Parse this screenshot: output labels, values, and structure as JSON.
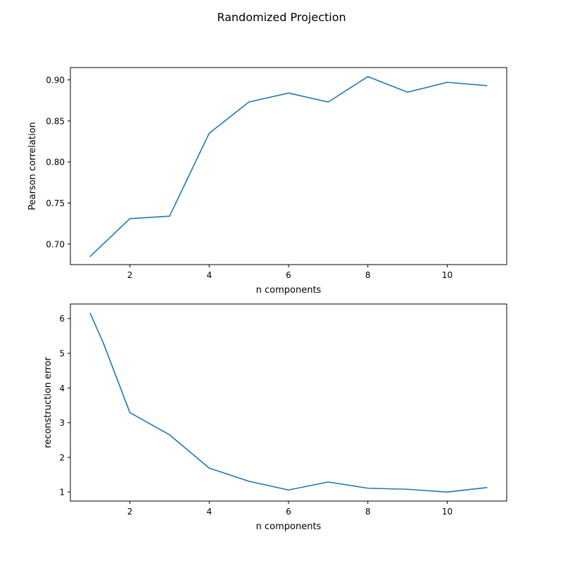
{
  "figure": {
    "suptitle": "Randomized Projection",
    "line_color": "#1f77b4"
  },
  "chart_data": [
    {
      "type": "line",
      "xlabel": "n components",
      "ylabel": "Pearson correlation",
      "x": [
        1,
        2,
        3,
        4,
        5,
        6,
        7,
        8,
        9,
        10,
        11
      ],
      "series": [
        {
          "values": [
            0.685,
            0.731,
            0.734,
            0.835,
            0.873,
            0.884,
            0.873,
            0.904,
            0.885,
            0.897,
            0.893
          ]
        }
      ],
      "xlim": [
        0.5,
        11.5
      ],
      "ylim": [
        0.675,
        0.915
      ],
      "xticks": [
        2,
        4,
        6,
        8,
        10
      ],
      "xtick_labels": [
        "2",
        "4",
        "6",
        "8",
        "10"
      ],
      "yticks": [
        0.7,
        0.75,
        0.8,
        0.85,
        0.9
      ],
      "ytick_labels": [
        "0.70",
        "0.75",
        "0.80",
        "0.85",
        "0.90"
      ],
      "grid": false,
      "legend": false
    },
    {
      "type": "line",
      "xlabel": "n components",
      "ylabel": "reconstruction error",
      "x": [
        1,
        1.33,
        2,
        3,
        4,
        5,
        6,
        7,
        8,
        9,
        10,
        11
      ],
      "series": [
        {
          "values": [
            6.15,
            5.3,
            3.29,
            2.65,
            1.69,
            1.31,
            1.06,
            1.29,
            1.11,
            1.08,
            1.0,
            1.13
          ]
        }
      ],
      "xlim": [
        0.5,
        11.5
      ],
      "ylim": [
        0.74,
        6.42
      ],
      "xticks": [
        2,
        4,
        6,
        8,
        10
      ],
      "xtick_labels": [
        "2",
        "4",
        "6",
        "8",
        "10"
      ],
      "yticks": [
        1,
        2,
        3,
        4,
        5,
        6
      ],
      "ytick_labels": [
        "1",
        "2",
        "3",
        "4",
        "5",
        "6"
      ],
      "grid": false,
      "legend": false
    }
  ]
}
